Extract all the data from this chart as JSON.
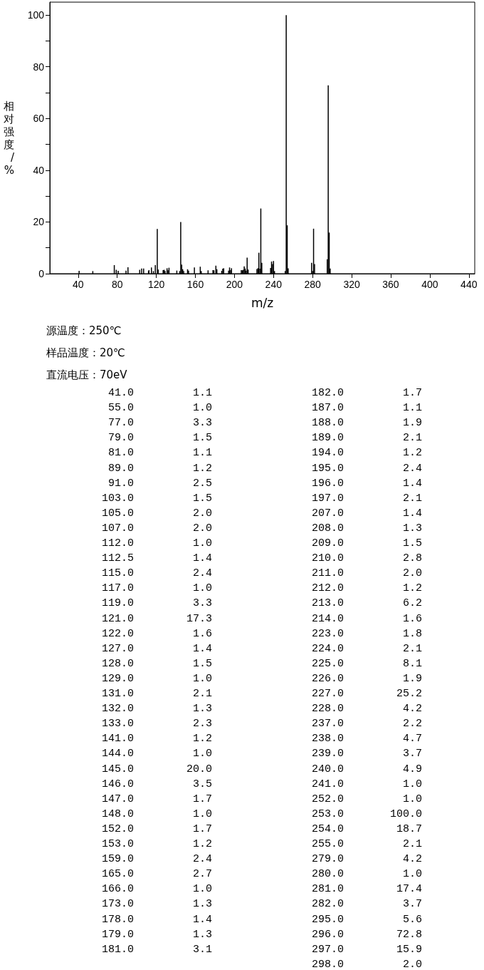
{
  "chart_data": {
    "type": "bar",
    "xlabel": "m/z",
    "ylabel": "相对强度/%",
    "x": [
      41,
      55,
      77,
      79,
      81,
      89,
      91,
      103,
      105,
      107,
      112,
      112.5,
      115,
      117,
      119,
      121,
      122,
      127,
      128,
      129,
      131,
      132,
      133,
      141,
      144,
      145,
      146,
      147,
      148,
      152,
      153,
      159,
      165,
      166,
      173,
      178,
      179,
      181,
      182,
      187,
      188,
      189,
      194,
      195,
      196,
      197,
      207,
      208,
      209,
      210,
      211,
      212,
      213,
      214,
      223,
      224,
      225,
      226,
      227,
      228,
      237,
      238,
      239,
      240,
      241,
      252,
      253,
      254,
      255,
      279,
      280,
      281,
      282,
      295,
      296,
      297,
      298
    ],
    "values": [
      1.1,
      1.0,
      3.3,
      1.5,
      1.1,
      1.2,
      2.5,
      1.5,
      2.0,
      2.0,
      1.0,
      1.4,
      2.4,
      1.0,
      3.3,
      17.3,
      1.6,
      1.4,
      1.5,
      1.0,
      2.1,
      1.3,
      2.3,
      1.2,
      1.0,
      20.0,
      3.5,
      1.7,
      1.0,
      1.7,
      1.2,
      2.4,
      2.7,
      1.0,
      1.3,
      1.4,
      1.3,
      3.1,
      1.7,
      1.1,
      1.9,
      2.1,
      1.2,
      2.4,
      1.4,
      2.1,
      1.4,
      1.3,
      1.5,
      2.8,
      2.0,
      1.2,
      6.2,
      1.6,
      1.8,
      2.1,
      8.1,
      1.9,
      25.2,
      4.2,
      2.2,
      4.7,
      3.7,
      4.9,
      1.0,
      1.0,
      100.0,
      18.7,
      2.1,
      4.2,
      1.0,
      17.4,
      3.7,
      5.6,
      72.8,
      15.9,
      2.0
    ],
    "color": "#000000",
    "xlim": [
      11,
      446
    ],
    "xticks": [
      40,
      80,
      120,
      160,
      200,
      240,
      280,
      320,
      360,
      400,
      440
    ],
    "ylim": [
      0,
      105
    ],
    "yticks": [
      0,
      {
        "value": 10,
        "label": null
      },
      20,
      {
        "value": 30,
        "label": null
      },
      40,
      {
        "value": 50,
        "label": null
      },
      60,
      {
        "value": 70,
        "label": null
      },
      80,
      {
        "value": 90,
        "label": null
      },
      100
    ],
    "grid": false,
    "annotations": [
      "源温度：250℃",
      "样品温度：20℃",
      "直流电压：70eV",
      "41.0",
      "1.1",
      "55.0",
      "1.0",
      "77.0",
      "3.3",
      "79.0",
      "1.5",
      "81.0",
      "1.1",
      "89.0",
      "1.2",
      "91.0",
      "2.5",
      "103.0",
      "1.5",
      "105.0",
      "2.0",
      "107.0",
      "2.0",
      "112.0",
      "1.0",
      "112.5",
      "1.4",
      "115.0",
      "2.4",
      "117.0",
      "1.0",
      "119.0",
      "3.3",
      "121.0",
      "17.3",
      "122.0",
      "1.6",
      "127.0",
      "1.4",
      "128.0",
      "1.5",
      "129.0",
      "1.0",
      "131.0",
      "2.1",
      "132.0",
      "1.3",
      "133.0",
      "2.3",
      "141.0",
      "1.2",
      "144.0",
      "1.0",
      "145.0",
      "20.0",
      "146.0",
      "3.5",
      "147.0",
      "1.7",
      "148.0",
      "1.0",
      "152.0",
      "1.7",
      "153.0",
      "1.2",
      "159.0",
      "2.4",
      "165.0",
      "2.7",
      "166.0",
      "1.0",
      "173.0",
      "1.3",
      "178.0",
      "1.4",
      "179.0",
      "1.3",
      "181.0",
      "3.1",
      "182.0",
      "1.7",
      "187.0",
      "1.1",
      "188.0",
      "1.9",
      "189.0",
      "2.1",
      "194.0",
      "1.2",
      "195.0",
      "2.4",
      "196.0",
      "1.4",
      "197.0",
      "2.1",
      "207.0",
      "1.4",
      "208.0",
      "1.3",
      "209.0",
      "1.5",
      "210.0",
      "2.8",
      "211.0",
      "2.0",
      "212.0",
      "1.2",
      "213.0",
      "6.2",
      "214.0",
      "1.6",
      "223.0",
      "1.8",
      "224.0",
      "2.1",
      "225.0",
      "8.1",
      "226.0",
      "1.9",
      "227.0",
      "25.2",
      "228.0",
      "4.2",
      "237.0",
      "2.2",
      "238.0",
      "4.7",
      "239.0",
      "3.7",
      "240.0",
      "4.9",
      "241.0",
      "1.0",
      "252.0",
      "1.0",
      "253.0",
      "100.0",
      "254.0",
      "18.7",
      "255.0",
      "2.1",
      "279.0",
      "4.2",
      "280.0",
      "1.0",
      "281.0",
      "17.4",
      "282.0",
      "3.7",
      "295.0",
      "5.6",
      "296.0",
      "72.8",
      "297.0",
      "15.9",
      "298.0",
      "2.0"
    ]
  }
}
